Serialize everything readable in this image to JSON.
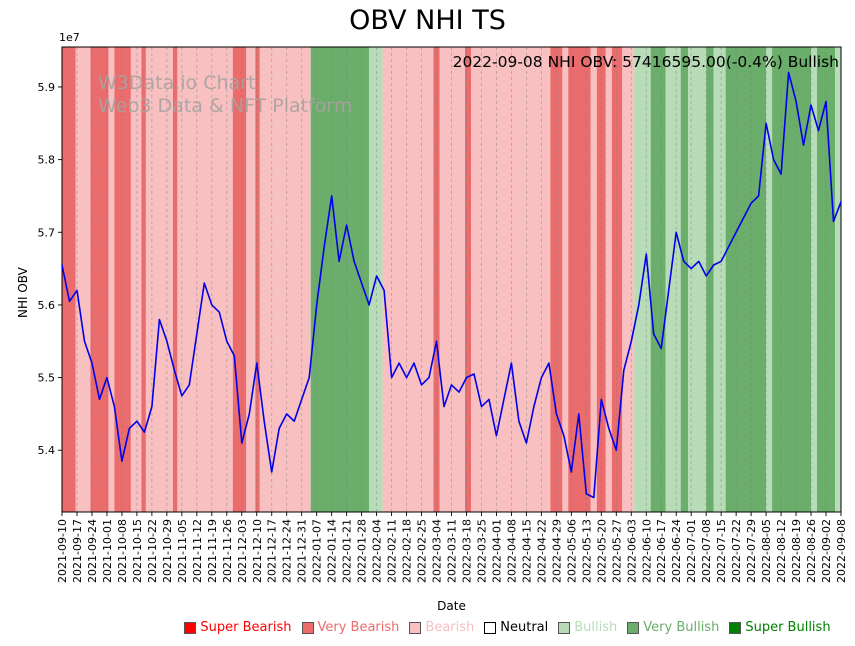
{
  "title": "OBV NHI TS",
  "annotation": "2022-09-08 NHI OBV: 57416595.00(-0.4%) Bullish",
  "watermark": {
    "line1": "W3Data.io Chart",
    "line2": "Web3 Data & NFT Platform"
  },
  "axes": {
    "x_label": "Date",
    "y_label": "NHI OBV",
    "scale_label": "1e7",
    "y_ticks": [
      5.4,
      5.5,
      5.6,
      5.7,
      5.8,
      5.9
    ]
  },
  "legend": {
    "items": [
      {
        "label": "Super Bearish",
        "color": "#ff0000",
        "text_color": "#ff0000"
      },
      {
        "label": "Very Bearish",
        "color": "#ea6c6c",
        "text_color": "#ea6c6c"
      },
      {
        "label": "Bearish",
        "color": "#f8c0c0",
        "text_color": "#f8c0c0"
      },
      {
        "label": "Neutral",
        "color": "#ffffff",
        "text_color": "#000000"
      },
      {
        "label": "Bullish",
        "color": "#b7dcb7",
        "text_color": "#b7dcb7"
      },
      {
        "label": "Very Bullish",
        "color": "#6bad6b",
        "text_color": "#6bad6b"
      },
      {
        "label": "Super Bullish",
        "color": "#008000",
        "text_color": "#008000"
      }
    ]
  },
  "chart_data": {
    "type": "line",
    "title": "OBV NHI TS",
    "xlabel": "Date",
    "ylabel": "NHI OBV",
    "unit_multiplier": "1e7",
    "ylim": [
      5.315,
      5.955
    ],
    "grid": "vertical-dashed",
    "line_color": "#0000ee",
    "categories": [
      "2021-09-10",
      "2021-09-17",
      "2021-09-24",
      "2021-10-01",
      "2021-10-08",
      "2021-10-15",
      "2021-10-22",
      "2021-10-29",
      "2021-11-05",
      "2021-11-12",
      "2021-11-19",
      "2021-11-26",
      "2021-12-03",
      "2021-12-10",
      "2021-12-17",
      "2021-12-24",
      "2021-12-31",
      "2022-01-07",
      "2022-01-14",
      "2022-01-21",
      "2022-01-28",
      "2022-02-04",
      "2022-02-11",
      "2022-02-18",
      "2022-02-25",
      "2022-03-04",
      "2022-03-11",
      "2022-03-18",
      "2022-03-25",
      "2022-04-01",
      "2022-04-08",
      "2022-04-15",
      "2022-04-22",
      "2022-04-29",
      "2022-05-06",
      "2022-05-13",
      "2022-05-20",
      "2022-05-27",
      "2022-06-03",
      "2022-06-10",
      "2022-06-17",
      "2022-06-24",
      "2022-07-01",
      "2022-07-08",
      "2022-07-15",
      "2022-07-22",
      "2022-07-29",
      "2022-08-05",
      "2022-08-12",
      "2022-08-19",
      "2022-08-26",
      "2022-09-02",
      "2022-09-08"
    ],
    "x_step_weeks": 0.5,
    "values": [
      5.655,
      5.605,
      5.62,
      5.55,
      5.52,
      5.47,
      5.5,
      5.46,
      5.385,
      5.43,
      5.44,
      5.425,
      5.46,
      5.58,
      5.55,
      5.51,
      5.475,
      5.49,
      5.56,
      5.63,
      5.6,
      5.59,
      5.55,
      5.53,
      5.41,
      5.45,
      5.52,
      5.44,
      5.37,
      5.43,
      5.45,
      5.44,
      5.47,
      5.5,
      5.6,
      5.68,
      5.75,
      5.66,
      5.71,
      5.66,
      5.63,
      5.6,
      5.64,
      5.62,
      5.5,
      5.52,
      5.5,
      5.52,
      5.49,
      5.5,
      5.55,
      5.46,
      5.49,
      5.48,
      5.5,
      5.505,
      5.46,
      5.47,
      5.42,
      5.47,
      5.52,
      5.44,
      5.41,
      5.46,
      5.5,
      5.52,
      5.45,
      5.42,
      5.37,
      5.45,
      5.34,
      5.335,
      5.47,
      5.43,
      5.4,
      5.51,
      5.55,
      5.6,
      5.67,
      5.56,
      5.54,
      5.62,
      5.7,
      5.66,
      5.65,
      5.66,
      5.64,
      5.655,
      5.66,
      5.68,
      5.7,
      5.72,
      5.74,
      5.75,
      5.85,
      5.8,
      5.78,
      5.92,
      5.88,
      5.82,
      5.875,
      5.84,
      5.88,
      5.715,
      5.742
    ],
    "final_point": {
      "date": "2022-09-08",
      "value": 57416595.0,
      "change_pct": -0.4,
      "sentiment": "Bullish"
    },
    "sentiment_colors": {
      "super_bearish": "#ff0000",
      "very_bearish": "#ea6c6c",
      "bearish": "#f8c0c0",
      "neutral": "#ffffff",
      "bullish": "#b7dcb7",
      "very_bullish": "#6bad6b",
      "super_bullish": "#008000"
    },
    "bands": [
      {
        "start": 0.0,
        "end": 0.9,
        "sentiment": "very_bearish"
      },
      {
        "start": 0.9,
        "end": 1.9,
        "sentiment": "bearish"
      },
      {
        "start": 1.9,
        "end": 3.1,
        "sentiment": "very_bearish"
      },
      {
        "start": 3.1,
        "end": 3.5,
        "sentiment": "bearish"
      },
      {
        "start": 3.5,
        "end": 4.6,
        "sentiment": "very_bearish"
      },
      {
        "start": 4.6,
        "end": 5.3,
        "sentiment": "bearish"
      },
      {
        "start": 5.3,
        "end": 5.6,
        "sentiment": "very_bearish"
      },
      {
        "start": 5.6,
        "end": 7.4,
        "sentiment": "bearish"
      },
      {
        "start": 7.4,
        "end": 7.7,
        "sentiment": "very_bearish"
      },
      {
        "start": 7.7,
        "end": 11.4,
        "sentiment": "bearish"
      },
      {
        "start": 11.4,
        "end": 12.3,
        "sentiment": "very_bearish"
      },
      {
        "start": 12.3,
        "end": 12.9,
        "sentiment": "bearish"
      },
      {
        "start": 12.9,
        "end": 13.2,
        "sentiment": "very_bearish"
      },
      {
        "start": 13.2,
        "end": 16.6,
        "sentiment": "bearish"
      },
      {
        "start": 16.6,
        "end": 20.5,
        "sentiment": "very_bullish"
      },
      {
        "start": 20.5,
        "end": 21.4,
        "sentiment": "bullish"
      },
      {
        "start": 21.4,
        "end": 24.8,
        "sentiment": "bearish"
      },
      {
        "start": 24.8,
        "end": 25.2,
        "sentiment": "very_bearish"
      },
      {
        "start": 25.2,
        "end": 26.9,
        "sentiment": "bearish"
      },
      {
        "start": 26.9,
        "end": 27.3,
        "sentiment": "very_bearish"
      },
      {
        "start": 27.3,
        "end": 32.6,
        "sentiment": "bearish"
      },
      {
        "start": 32.6,
        "end": 33.4,
        "sentiment": "very_bearish"
      },
      {
        "start": 33.4,
        "end": 33.8,
        "sentiment": "bearish"
      },
      {
        "start": 33.8,
        "end": 35.3,
        "sentiment": "very_bearish"
      },
      {
        "start": 35.3,
        "end": 35.7,
        "sentiment": "bearish"
      },
      {
        "start": 35.7,
        "end": 36.3,
        "sentiment": "very_bearish"
      },
      {
        "start": 36.3,
        "end": 36.7,
        "sentiment": "bearish"
      },
      {
        "start": 36.7,
        "end": 37.4,
        "sentiment": "very_bearish"
      },
      {
        "start": 37.4,
        "end": 38.2,
        "sentiment": "bearish"
      },
      {
        "start": 38.2,
        "end": 39.3,
        "sentiment": "bullish"
      },
      {
        "start": 39.3,
        "end": 40.3,
        "sentiment": "very_bullish"
      },
      {
        "start": 40.3,
        "end": 41.3,
        "sentiment": "bullish"
      },
      {
        "start": 41.3,
        "end": 41.8,
        "sentiment": "very_bullish"
      },
      {
        "start": 41.8,
        "end": 43.0,
        "sentiment": "bullish"
      },
      {
        "start": 43.0,
        "end": 43.5,
        "sentiment": "very_bullish"
      },
      {
        "start": 43.5,
        "end": 44.3,
        "sentiment": "bullish"
      },
      {
        "start": 44.3,
        "end": 47.0,
        "sentiment": "very_bullish"
      },
      {
        "start": 47.0,
        "end": 47.4,
        "sentiment": "bullish"
      },
      {
        "start": 47.4,
        "end": 50.0,
        "sentiment": "very_bullish"
      },
      {
        "start": 50.0,
        "end": 50.4,
        "sentiment": "bullish"
      },
      {
        "start": 50.4,
        "end": 51.6,
        "sentiment": "very_bullish"
      },
      {
        "start": 51.6,
        "end": 52.0,
        "sentiment": "bullish"
      }
    ]
  }
}
